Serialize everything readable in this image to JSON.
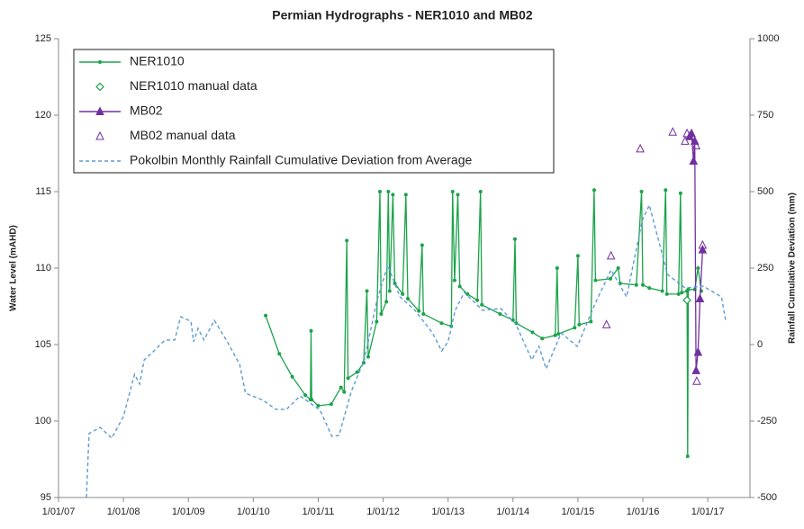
{
  "chart_data": {
    "type": "line",
    "title": "Permian Hydrographs - NER1010 and MB02",
    "y_label": "Water Level (mAHD)",
    "y2_label": "Rainfall Cumulative Deviation (mm)",
    "xlim": [
      2007,
      2017.65
    ],
    "xticks": [
      {
        "value": 2007,
        "label": "1/01/07"
      },
      {
        "value": 2008,
        "label": "1/01/08"
      },
      {
        "value": 2009,
        "label": "1/01/09"
      },
      {
        "value": 2010,
        "label": "1/01/10"
      },
      {
        "value": 2011,
        "label": "1/01/11"
      },
      {
        "value": 2012,
        "label": "1/01/12"
      },
      {
        "value": 2013,
        "label": "1/01/13"
      },
      {
        "value": 2014,
        "label": "1/01/14"
      },
      {
        "value": 2015,
        "label": "1/01/15"
      },
      {
        "value": 2016,
        "label": "1/01/16"
      },
      {
        "value": 2017,
        "label": "1/01/17"
      }
    ],
    "ylim": [
      95,
      125
    ],
    "yticks": [
      95,
      100,
      105,
      110,
      115,
      120,
      125
    ],
    "y2lim": [
      -500,
      1000
    ],
    "y2ticks": [
      -500,
      -250,
      0,
      250,
      500,
      750,
      1000
    ],
    "grid": false,
    "legend": "top-left",
    "series": [
      {
        "name": "NER1010",
        "color": "#1aa34a",
        "line": "solid",
        "marker": "circle",
        "x": [
          2010.19,
          2010.4,
          2010.6,
          2010.8,
          2010.88,
          2010.89,
          2010.9,
          2011.0,
          2011.2,
          2011.35,
          2011.4,
          2011.44,
          2011.46,
          2011.6,
          2011.7,
          2011.75,
          2011.77,
          2011.9,
          2011.95,
          2011.97,
          2012.05,
          2012.08,
          2012.1,
          2012.15,
          2012.18,
          2012.3,
          2012.35,
          2012.38,
          2012.55,
          2012.6,
          2012.62,
          2012.9,
          2013.05,
          2013.07,
          2013.1,
          2013.15,
          2013.18,
          2013.3,
          2013.45,
          2013.5,
          2013.52,
          2013.8,
          2014.0,
          2014.03,
          2014.05,
          2014.3,
          2014.45,
          2014.65,
          2014.68,
          2014.7,
          2014.95,
          2015.0,
          2015.02,
          2015.2,
          2015.25,
          2015.27,
          2015.5,
          2015.62,
          2015.65,
          2015.9,
          2015.98,
          2016.0,
          2016.1,
          2016.3,
          2016.35,
          2016.37,
          2016.55,
          2016.58,
          2016.6,
          2016.68,
          2016.69,
          2016.7,
          2016.8,
          2016.85,
          2016.9
        ],
        "values": [
          106.9,
          104.4,
          102.9,
          101.7,
          101.4,
          105.9,
          101.4,
          101.0,
          101.1,
          102.2,
          101.9,
          111.8,
          102.8,
          103.2,
          103.8,
          108.5,
          104.2,
          106.5,
          115.0,
          107.0,
          107.8,
          115.0,
          108.5,
          114.8,
          109.0,
          108.3,
          114.8,
          108.0,
          107.2,
          111.5,
          107.0,
          106.4,
          106.2,
          115.0,
          109.2,
          114.8,
          108.8,
          108.3,
          107.9,
          115.0,
          107.6,
          107.0,
          106.6,
          111.9,
          106.4,
          105.8,
          105.4,
          105.6,
          110.0,
          105.7,
          106.1,
          110.8,
          106.3,
          106.5,
          115.1,
          109.2,
          109.3,
          110.0,
          109.0,
          108.9,
          115.0,
          108.9,
          108.7,
          108.5,
          115.1,
          108.3,
          108.3,
          114.9,
          108.4,
          108.5,
          97.7,
          108.6,
          108.6,
          110.0,
          108.5
        ]
      },
      {
        "name": "NER1010 manual data",
        "color": "#1aa34a",
        "line": "none",
        "marker": "diamond",
        "x": [
          2016.68
        ],
        "values": [
          107.9
        ]
      },
      {
        "name": "MB02",
        "color": "#7030a0",
        "line": "solid",
        "marker": "triangle-filled",
        "x": [
          2016.72,
          2016.75,
          2016.78,
          2016.8,
          2016.82,
          2016.85,
          2016.88,
          2016.92
        ],
        "values": [
          118.6,
          118.8,
          117.0,
          118.3,
          103.3,
          104.5,
          108.0,
          111.2
        ]
      },
      {
        "name": "MB02 manual data",
        "color": "#7030a0",
        "line": "none",
        "marker": "triangle",
        "x": [
          2015.44,
          2015.51,
          2015.96,
          2016.46,
          2016.65,
          2016.68,
          2016.82,
          2016.83,
          2016.92
        ],
        "values": [
          106.3,
          110.8,
          117.8,
          118.9,
          118.3,
          118.8,
          118.0,
          102.6,
          111.5
        ]
      },
      {
        "name": "Pokolbin Monthly Rainfall Cumulative Deviation from Average",
        "color": "#5b9bd5",
        "line": "dashed",
        "marker": "none",
        "axis": "y2",
        "x": [
          2007.43,
          2007.47,
          2007.64,
          2007.82,
          2008.0,
          2008.17,
          2008.25,
          2008.32,
          2008.47,
          2008.64,
          2008.79,
          2008.88,
          2009.04,
          2009.08,
          2009.15,
          2009.24,
          2009.4,
          2009.6,
          2009.79,
          2009.88,
          2010.15,
          2010.35,
          2010.51,
          2010.72,
          2011.03,
          2011.21,
          2011.32,
          2011.51,
          2011.71,
          2011.9,
          2012.07,
          2012.26,
          2012.49,
          2012.76,
          2012.9,
          2013.0,
          2013.11,
          2013.25,
          2013.53,
          2013.81,
          2014.04,
          2014.29,
          2014.4,
          2014.51,
          2014.74,
          2014.99,
          2015.26,
          2015.51,
          2015.75,
          2015.99,
          2016.1,
          2016.38,
          2016.65,
          2016.93,
          2017.21,
          2017.28
        ],
        "values": [
          -500,
          -291,
          -271,
          -306,
          -235,
          -97,
          -129,
          -50,
          -21,
          15,
          15,
          91,
          76,
          9,
          53,
          15,
          79,
          9,
          -65,
          -159,
          -182,
          -212,
          -212,
          -168,
          -215,
          -300,
          -297,
          -153,
          -50,
          141,
          259,
          156,
          112,
          38,
          -21,
          9,
          112,
          171,
          112,
          118,
          68,
          -50,
          -6,
          -79,
          38,
          -6,
          132,
          244,
          156,
          406,
          456,
          229,
          185,
          191,
          156,
          74
        ]
      }
    ]
  }
}
